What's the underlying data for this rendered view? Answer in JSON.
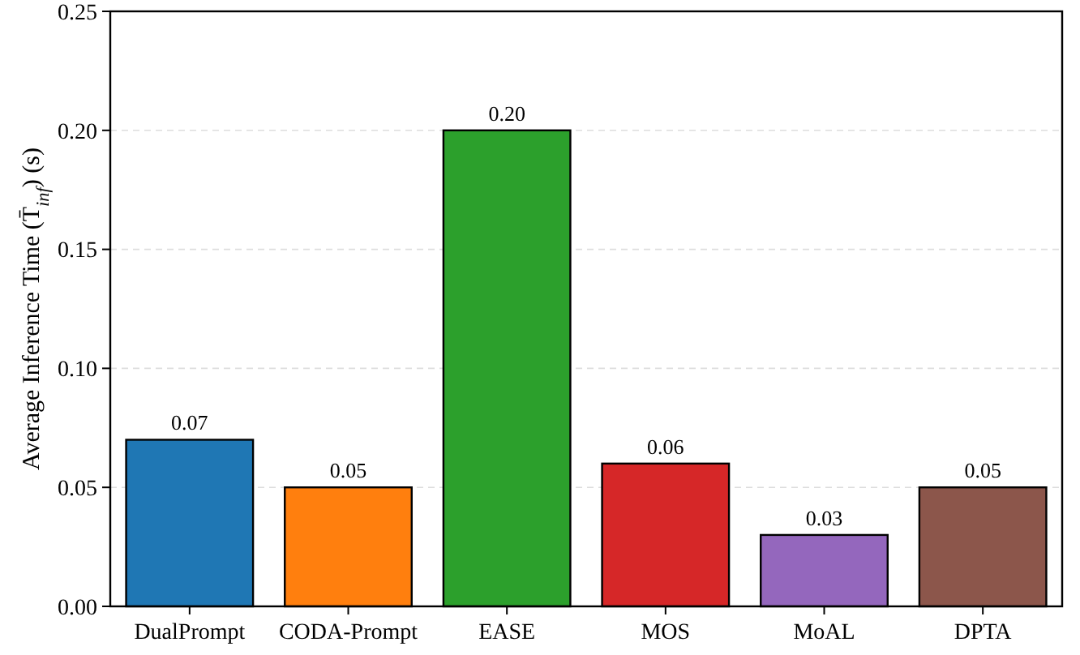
{
  "chart_data": {
    "type": "bar",
    "ylabel": "Average Inference Time (T̄$_{inf}$) (s)",
    "categories": [
      "DualPrompt",
      "CODA-Prompt",
      "EASE",
      "MOS",
      "MoAL",
      "DPTA"
    ],
    "values": [
      0.07,
      0.05,
      0.2,
      0.06,
      0.03,
      0.05
    ],
    "colors": [
      "#1f77b4",
      "#ff7f0e",
      "#2ca02c",
      "#d62728",
      "#9467bd",
      "#8c564b"
    ],
    "value_labels": [
      "0.07",
      "0.05",
      "0.20",
      "0.06",
      "0.03",
      "0.05"
    ],
    "ylim": [
      0,
      0.25
    ],
    "yticks": [
      {
        "value": 0,
        "label": "0.00"
      },
      {
        "value": 0.05,
        "label": "0.05"
      },
      {
        "value": 0.1,
        "label": "0.10"
      },
      {
        "value": 0.15,
        "label": "0.15"
      },
      {
        "value": 0.2,
        "label": "0.20"
      },
      {
        "value": 0.25,
        "label": "0.25"
      }
    ],
    "grid": "y"
  }
}
